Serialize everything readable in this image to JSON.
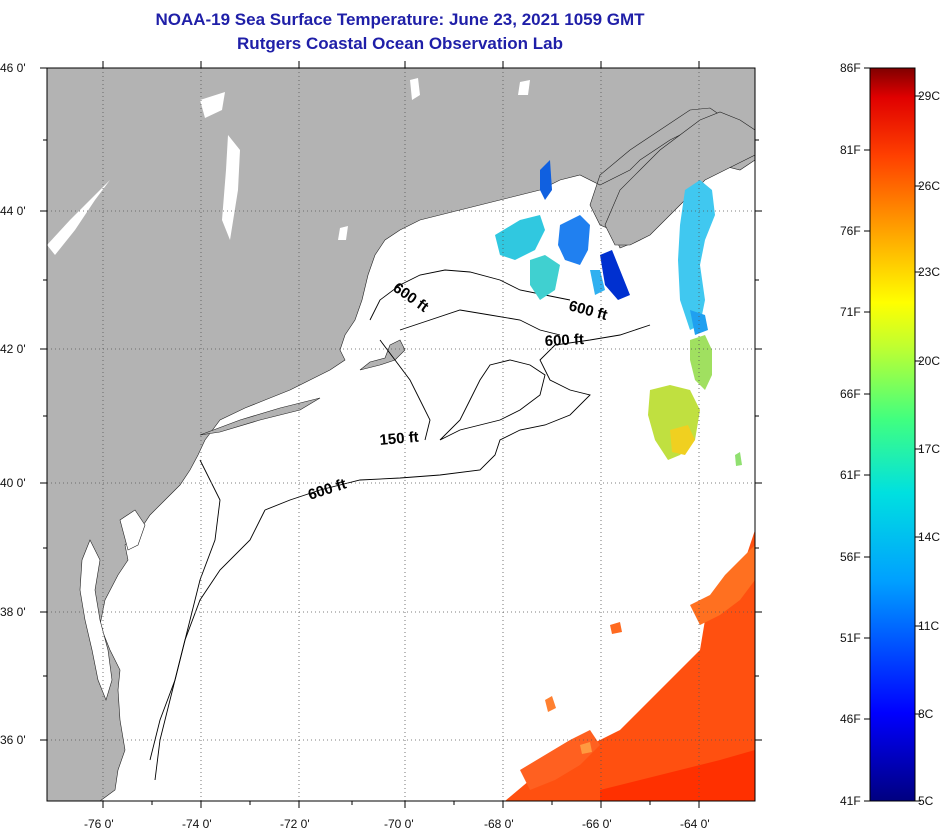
{
  "title": "NOAA-19 Sea Surface Temperature:  June 23, 2021 1059 GMT",
  "subtitle": "Rutgers Coastal Ocean Observation Lab",
  "axes": {
    "lat_labels": [
      "46 0'",
      "44 0'",
      "42 0'",
      "40 0'",
      "38 0'",
      "36 0'"
    ],
    "lon_labels": [
      "-76 0'",
      "-74 0'",
      "-72 0'",
      "-70 0'",
      "-68 0'",
      "-66 0'",
      "-64 0'"
    ]
  },
  "depth_contours": [
    "600 ft",
    "600 ft",
    "600 ft",
    "150 ft",
    "600 ft"
  ],
  "colorbar": {
    "fahrenheit": [
      "86F",
      "81F",
      "76F",
      "71F",
      "66F",
      "61F",
      "56F",
      "51F",
      "46F",
      "41F"
    ],
    "celsius": [
      "29C",
      "26C",
      "23C",
      "20C",
      "17C",
      "14C",
      "11C",
      "8C",
      "5C"
    ]
  },
  "colors": {
    "land": "#b3b3b3",
    "ocean": "#ffffff",
    "title": "#1f1fa8"
  }
}
